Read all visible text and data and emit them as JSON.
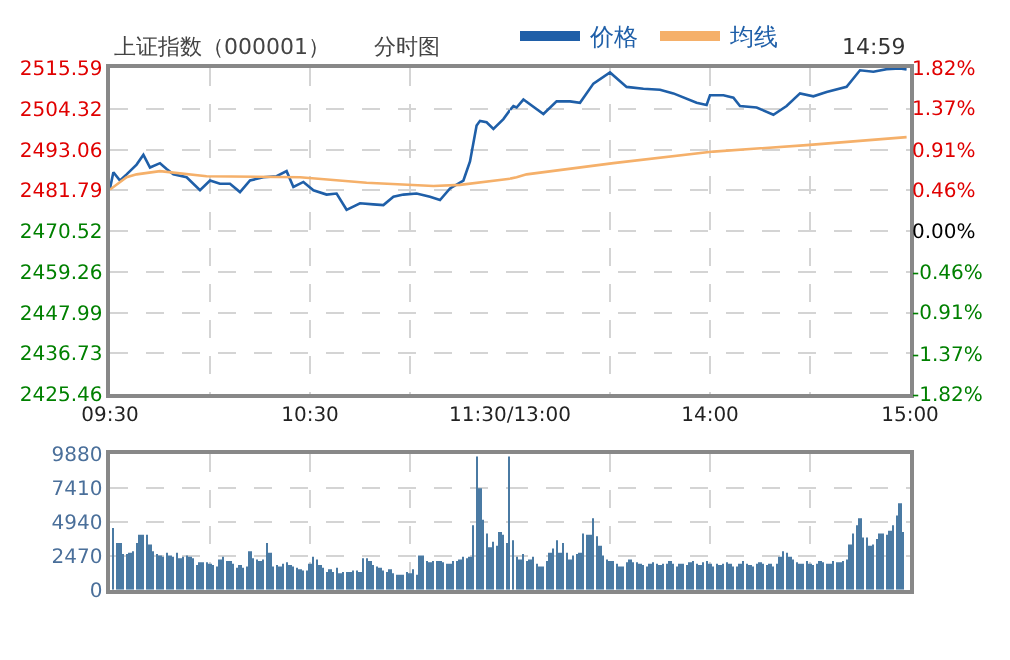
{
  "chart_data": [
    {
      "type": "line",
      "title": "上证指数（000001）",
      "subtitle": "分时图",
      "legend": "top",
      "grid": true,
      "line_style": "solid",
      "marker": "none",
      "xlim": [
        9.5,
        11.5
      ],
      "xticks": [
        {
          "value": 9.5,
          "label": "09:30"
        },
        {
          "value": 10,
          "label": null
        },
        {
          "value": 10.5,
          "label": "10:30"
        },
        {
          "value": 11,
          "label": null
        },
        {
          "value": 11.5,
          "label": "11:30/13:00"
        }
      ],
      "ylim": [
        2425.46,
        2515.59
      ],
      "yticks": [
        2425.46,
        2436.73,
        2447.99,
        2459.26,
        2470.52,
        2481.79,
        2493.06,
        2504.32,
        2515.59
      ],
      "series": [
        {
          "name": "价格",
          "color": "#1f5fa8",
          "x": [
            9.5,
            9.517,
            9.55,
            9.583,
            9.633,
            9.667,
            9.7,
            9.75,
            9.783,
            9.817,
            9.883,
            9.95,
            10,
            10.05,
            10.1,
            10.15,
            10.2,
            10.267,
            10.333,
            10.383,
            10.417,
            10.467,
            10.517,
            10.583,
            10.633,
            10.683,
            10.75,
            10.817,
            10.867,
            10.917,
            10.967,
            11.033,
            11.1,
            11.15,
            11.2,
            11.267,
            11.3,
            11.333,
            11.35,
            11.383,
            11.417,
            11.467,
            11.5
          ],
          "values": [
            2482.3,
            2486.8,
            2484.5,
            2486.2,
            2488.9,
            2491.6,
            2488.1,
            2489.3,
            2487.7,
            2486.2,
            2485.4,
            2481.8,
            2484.5,
            2483.6,
            2483.6,
            2481.3,
            2484.5,
            2485.4,
            2485.7,
            2487.1,
            2482.7,
            2484.1,
            2481.8,
            2480.6,
            2480.9,
            2476.4,
            2478.2,
            2477.9,
            2477.7,
            2480.0,
            2480.6,
            2480.9,
            2480.0,
            2479.1,
            2482.3,
            2484.5,
            2489.8,
            2499.7,
            2501.0,
            2500.6,
            2498.8,
            2501.5,
            2504.0
          ]
        },
        {
          "name": "均线",
          "color": "#f5b06a",
          "x": [
            9.5,
            9.583,
            9.633,
            9.75,
            9.983,
            10.45,
            10.783,
            11.117,
            11.25,
            11.5
          ],
          "values": [
            2482.0,
            2485.4,
            2486.2,
            2487.1,
            2485.7,
            2485.4,
            2483.9,
            2483.0,
            2483.3,
            2485.0
          ]
        }
      ]
    },
    {
      "type": "line",
      "annotations": [
        "14:59"
      ],
      "grid": true,
      "line_style": "solid",
      "marker": "none",
      "tick_labels": "x",
      "xlim": [
        13,
        15
      ],
      "xticks": [
        {
          "value": 13.5,
          "label": null
        },
        {
          "value": 14,
          "label": "14:00"
        },
        {
          "value": 14.5,
          "label": null
        },
        {
          "value": 15,
          "label": "15:00"
        }
      ],
      "ylim": [
        2425.46,
        2515.59
      ],
      "yticks": [
        2425.46,
        2436.73,
        2447.99,
        2459.26,
        2470.52,
        2481.79,
        2493.06,
        2504.32,
        2515.59
      ],
      "y2lim": [
        -1.82,
        1.82
      ],
      "y2ticks": [
        {
          "value": -1.82,
          "label": "-1.82%"
        },
        {
          "value": -1.37,
          "label": "-1.37%"
        },
        {
          "value": -0.91,
          "label": "-0.91%"
        },
        {
          "value": -0.46,
          "label": "-0.46%"
        },
        {
          "value": 0,
          "label": "0.00%"
        },
        {
          "value": 0.46,
          "label": "0.46%"
        },
        {
          "value": 0.91,
          "label": "0.91%"
        },
        {
          "value": 1.37,
          "label": "1.37%"
        },
        {
          "value": 1.82,
          "label": "1.82%"
        }
      ],
      "series": [
        {
          "color": "#1f5fa8",
          "x": [
            13,
            13.017,
            13.033,
            13.067,
            13.167,
            13.233,
            13.3,
            13.35,
            13.417,
            13.5,
            13.583,
            13.667,
            13.75,
            13.817,
            13.933,
            13.983,
            14,
            14.067,
            14.117,
            14.15,
            14.233,
            14.317,
            14.383,
            14.45,
            14.517,
            14.583,
            14.683,
            14.75,
            14.817,
            14.883,
            14.95,
            14.983
          ],
          "values": [
            2504.0,
            2505.1,
            2504.7,
            2506.9,
            2502.9,
            2506.4,
            2506.4,
            2506.0,
            2511.3,
            2514.4,
            2510.4,
            2509.9,
            2509.6,
            2508.6,
            2506.0,
            2505.4,
            2508.1,
            2508.1,
            2507.4,
            2505.1,
            2504.7,
            2502.7,
            2505.1,
            2508.6,
            2507.8,
            2509.0,
            2510.4,
            2515.0,
            2514.6,
            2515.3,
            2515.5,
            2515.2
          ]
        },
        {
          "color": "#f5b06a",
          "x": [
            13,
            13.033,
            13.083,
            13.517,
            14.017,
            14.483,
            14.983
          ],
          "values": [
            2485.0,
            2485.4,
            2486.2,
            2489.3,
            2492.5,
            2494.3,
            2496.5
          ]
        }
      ]
    },
    {
      "type": "bar",
      "grid": true,
      "tick_labels": "y",
      "xlim": [
        9.5,
        11.5
      ],
      "xticks": [
        {
          "value": 10,
          "label": null
        },
        {
          "value": 10.5,
          "label": null
        },
        {
          "value": 11,
          "label": null
        },
        {
          "value": 11.5,
          "label": null
        }
      ],
      "ylim": [
        0,
        9880
      ],
      "yticks": [
        0,
        2470,
        4940,
        7410,
        9880
      ],
      "series": [
        {
          "color": "#4a7aa3",
          "x": [
            9.517,
            9.533,
            9.55,
            9.567,
            9.583,
            9.6,
            9.617,
            9.633,
            9.65,
            9.667,
            9.683,
            9.7,
            9.717,
            9.733,
            9.75,
            9.767,
            9.783,
            9.8,
            9.817,
            9.833,
            9.85,
            9.867,
            9.883,
            9.9,
            9.917,
            9.933,
            9.95,
            9.967,
            9.983,
            10,
            10.017,
            10.033,
            10.05,
            10.067,
            10.083,
            10.1,
            10.117,
            10.133,
            10.15,
            10.167,
            10.183,
            10.2,
            10.217,
            10.233,
            10.25,
            10.267,
            10.283,
            10.3,
            10.317,
            10.333,
            10.35,
            10.367,
            10.383,
            10.4,
            10.417,
            10.433,
            10.45,
            10.467,
            10.483,
            10.5,
            10.517,
            10.533,
            10.55,
            10.567,
            10.583,
            10.6,
            10.617,
            10.633,
            10.65,
            10.667,
            10.683,
            10.7,
            10.717,
            10.733,
            10.75,
            10.767,
            10.783,
            10.8,
            10.817,
            10.833,
            10.85,
            10.867,
            10.883,
            10.9,
            10.917,
            10.933,
            10.95,
            10.967,
            10.983,
            11,
            11.017,
            11.033,
            11.05,
            11.067,
            11.083,
            11.1,
            11.117,
            11.133,
            11.15,
            11.167,
            11.183,
            11.2,
            11.217,
            11.233,
            11.25,
            11.267,
            11.283,
            11.3,
            11.317,
            11.333,
            11.35,
            11.367,
            11.383,
            11.4,
            11.417,
            11.433,
            11.45,
            11.467,
            11.483,
            11.5
          ],
          "values": [
            4500,
            3400,
            3400,
            2600,
            2600,
            2700,
            2800,
            3400,
            4000,
            4000,
            4000,
            3300,
            2800,
            2600,
            2500,
            2400,
            2700,
            2500,
            2400,
            2700,
            2300,
            2400,
            2500,
            2400,
            2300,
            1800,
            2000,
            2000,
            2000,
            1900,
            1800,
            1700,
            2200,
            2400,
            2100,
            2100,
            1900,
            1600,
            1800,
            1600,
            1700,
            2800,
            2300,
            2200,
            2100,
            2200,
            3400,
            2700,
            1700,
            1800,
            1700,
            1900,
            2000,
            1800,
            1700,
            1600,
            1500,
            1400,
            1400,
            1900,
            2400,
            2200,
            1800,
            1600,
            1300,
            1500,
            1300,
            1600,
            1200,
            1300,
            1300,
            1300,
            1400,
            1400,
            1300,
            2300,
            2300,
            2100,
            1800,
            1700,
            1600,
            1400,
            1300,
            1500,
            1200,
            1100,
            1100,
            1100,
            1300,
            1200,
            1500,
            1100,
            2500,
            2500,
            2100,
            2000,
            2100,
            2100,
            2100,
            2000,
            1900,
            1900,
            2100,
            2100,
            2200,
            2400,
            2300,
            2400,
            4700,
            9700,
            7400,
            5100,
            4100,
            3100,
            3500,
            3200,
            4200,
            4000,
            3400,
            9700
          ]
        }
      ]
    },
    {
      "type": "bar",
      "grid": true,
      "tick_labels": false,
      "xlim": [
        13,
        15
      ],
      "xticks": [
        {
          "value": 13.5,
          "label": null
        },
        {
          "value": 14,
          "label": null
        },
        {
          "value": 14.5,
          "label": null
        }
      ],
      "ylim": [
        0,
        9880
      ],
      "yticks": [
        0,
        2470,
        4940,
        7410,
        9880
      ],
      "series": [
        {
          "color": "#4a7aa3",
          "x": [
            13.017,
            13.033,
            13.05,
            13.067,
            13.083,
            13.1,
            13.117,
            13.133,
            13.15,
            13.167,
            13.183,
            13.2,
            13.217,
            13.233,
            13.25,
            13.267,
            13.283,
            13.3,
            13.317,
            13.333,
            13.35,
            13.367,
            13.383,
            13.4,
            13.417,
            13.433,
            13.45,
            13.467,
            13.483,
            13.5,
            13.517,
            13.533,
            13.55,
            13.567,
            13.583,
            13.6,
            13.617,
            13.633,
            13.65,
            13.667,
            13.683,
            13.7,
            13.717,
            13.733,
            13.75,
            13.767,
            13.783,
            13.8,
            13.817,
            13.833,
            13.85,
            13.867,
            13.883,
            13.9,
            13.917,
            13.933,
            13.95,
            13.967,
            13.983,
            14,
            14.017,
            14.033,
            14.05,
            14.067,
            14.083,
            14.1,
            14.117,
            14.133,
            14.15,
            14.167,
            14.183,
            14.2,
            14.217,
            14.233,
            14.25,
            14.267,
            14.283,
            14.3,
            14.317,
            14.333,
            14.35,
            14.367,
            14.383,
            14.4,
            14.417,
            14.433,
            14.45,
            14.467,
            14.483,
            14.5,
            14.517,
            14.533,
            14.55,
            14.567,
            14.583,
            14.6,
            14.617,
            14.633,
            14.65,
            14.667,
            14.683,
            14.7,
            14.717,
            14.733,
            14.75,
            14.767,
            14.783,
            14.8,
            14.817,
            14.833,
            14.85,
            14.867,
            14.883,
            14.9,
            14.917,
            14.933,
            14.95,
            14.967
          ],
          "values": [
            3600,
            2400,
            2200,
            2600,
            2100,
            2200,
            2400,
            1900,
            1700,
            1700,
            2100,
            2700,
            3000,
            3600,
            2700,
            3400,
            2700,
            2200,
            2500,
            2600,
            2700,
            4100,
            4000,
            4000,
            5200,
            3900,
            3200,
            2500,
            2200,
            2100,
            2100,
            1900,
            1700,
            1700,
            2000,
            2200,
            2000,
            2000,
            1900,
            1800,
            1700,
            1900,
            2000,
            1900,
            1800,
            1900,
            1900,
            2100,
            1900,
            1700,
            1900,
            1900,
            1800,
            2000,
            2100,
            1900,
            1800,
            2000,
            2100,
            1900,
            1700,
            1900,
            1800,
            1900,
            2000,
            1900,
            1700,
            1700,
            1900,
            2100,
            1900,
            1800,
            1700,
            1900,
            2000,
            1900,
            1800,
            1900,
            1700,
            1900,
            2400,
            2800,
            2700,
            2400,
            2200,
            2000,
            1900,
            1900,
            2100,
            1900,
            1800,
            1900,
            2100,
            2000,
            1900,
            1900,
            2100,
            2000,
            2000,
            2100,
            2200,
            3300,
            4100,
            4700,
            5200,
            3800,
            3800,
            3200,
            3300,
            3700,
            4100,
            4100,
            4000,
            4300,
            4700,
            5400,
            6300,
            4200
          ]
        }
      ]
    }
  ]
}
